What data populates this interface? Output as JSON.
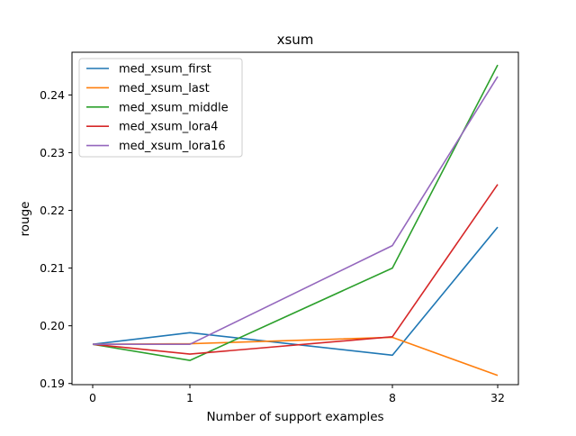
{
  "chart_data": {
    "type": "line",
    "title": "xsum",
    "xlabel": "Number of support examples",
    "ylabel": "rouge",
    "x": [
      0,
      1,
      8,
      32
    ],
    "x_tick_labels": [
      "0",
      "1",
      "8",
      "32"
    ],
    "y_ticks": [
      0.19,
      0.2,
      0.21,
      0.22,
      0.23,
      0.24
    ],
    "y_tick_labels": [
      "0.19",
      "0.20",
      "0.21",
      "0.22",
      "0.23",
      "0.24"
    ],
    "ylim": [
      0.1898,
      0.2474
    ],
    "grid": false,
    "legend_position": "top-left",
    "series": [
      {
        "name": "med_xsum_first",
        "color": "#1f77b4",
        "values": [
          0.1968,
          0.1988,
          0.1949,
          0.2171
        ]
      },
      {
        "name": "med_xsum_last",
        "color": "#ff7f0e",
        "values": [
          0.1968,
          0.1969,
          0.198,
          0.1914
        ]
      },
      {
        "name": "med_xsum_middle",
        "color": "#2ca02c",
        "values": [
          0.1968,
          0.194,
          0.21,
          0.2452
        ]
      },
      {
        "name": "med_xsum_lora4",
        "color": "#d62728",
        "values": [
          0.1968,
          0.1951,
          0.1981,
          0.2245
        ]
      },
      {
        "name": "med_xsum_lora16",
        "color": "#9467bd",
        "values": [
          0.1968,
          0.1968,
          0.2139,
          0.2432
        ]
      }
    ]
  }
}
